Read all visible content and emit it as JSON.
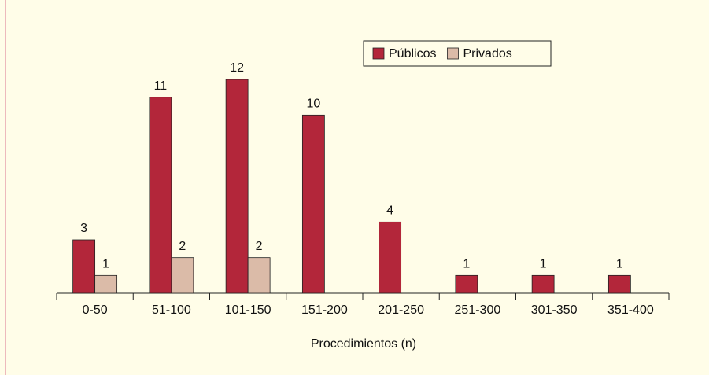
{
  "chart_data": {
    "type": "bar",
    "x_label": "Procedimientos (n)",
    "categories": [
      "0-50",
      "51-100",
      "101-150",
      "151-200",
      "201-250",
      "251-300",
      "301-350",
      "351-400"
    ],
    "series": [
      {
        "name": "Públicos",
        "color": "#b3263a",
        "values": [
          3,
          11,
          12,
          10,
          4,
          1,
          1,
          1
        ]
      },
      {
        "name": "Privados",
        "color": "#dbbba8",
        "values": [
          1,
          2,
          2,
          null,
          null,
          null,
          null,
          null
        ]
      }
    ],
    "legend": "top-right"
  }
}
